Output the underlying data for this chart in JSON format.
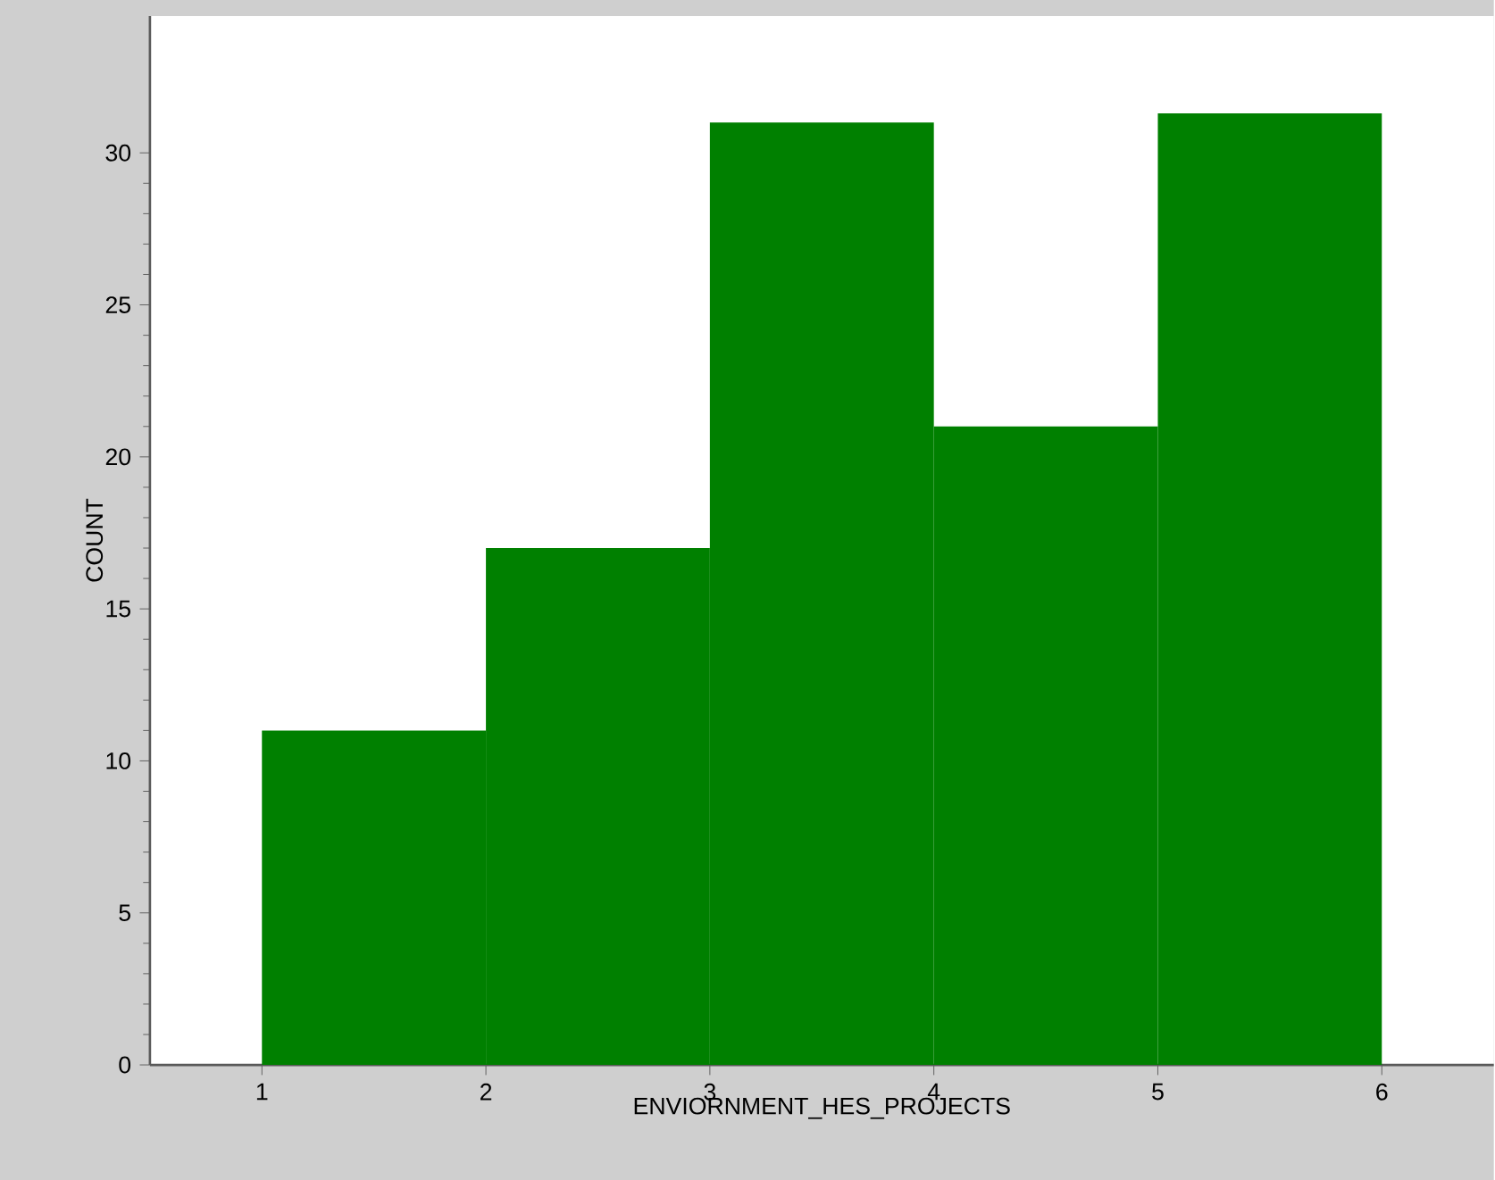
{
  "chart_data": {
    "type": "histogram",
    "xlabel": "ENVIORNMENT_HES_PROJECTS",
    "ylabel": "COUNT",
    "bins": [
      1,
      2,
      3,
      4,
      5,
      6
    ],
    "values": [
      11,
      17,
      31,
      21,
      31.3
    ],
    "color": "#008000",
    "xlim": [
      0.5,
      6.5
    ],
    "ylim": [
      0,
      34.5
    ],
    "xticks": [
      1,
      2,
      3,
      4,
      5,
      6
    ],
    "yticks": [
      0,
      5,
      10,
      15,
      20,
      25,
      30
    ],
    "grid": false
  }
}
